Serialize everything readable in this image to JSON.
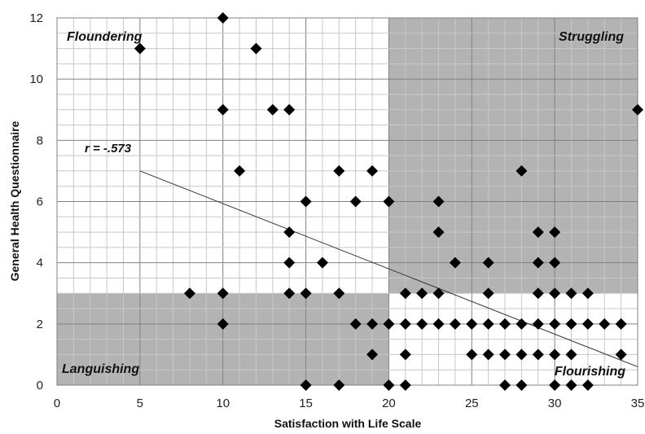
{
  "chart_data": {
    "type": "scatter",
    "xlabel": "Satisfaction with Life Scale",
    "ylabel": "General Health Questionnaire",
    "xlim": [
      0,
      35
    ],
    "ylim": [
      0,
      12
    ],
    "x_ticks": [
      "0",
      "5",
      "10",
      "15",
      "20",
      "25",
      "30",
      "35"
    ],
    "y_ticks": [
      "0",
      "2",
      "4",
      "6",
      "8",
      "10",
      "12"
    ],
    "grid": true,
    "quadrant_labels": {
      "top_left": "Floundering",
      "top_right": "Struggling",
      "bottom_left": "Languishing",
      "bottom_right": "Flourishing"
    },
    "shaded_regions": [
      {
        "x": [
          20,
          35
        ],
        "y": [
          3,
          12
        ],
        "color": "#b3b3b3"
      },
      {
        "x": [
          0,
          20
        ],
        "y": [
          0,
          3
        ],
        "color": "#b3b3b3"
      }
    ],
    "correlation_label": "r = -.573",
    "trendline": {
      "x": [
        5,
        35
      ],
      "y": [
        7,
        0.6
      ]
    },
    "marker_color": "#000000",
    "points": [
      [
        5,
        11
      ],
      [
        8,
        3
      ],
      [
        10,
        12
      ],
      [
        10,
        9
      ],
      [
        10,
        3
      ],
      [
        10,
        2
      ],
      [
        11,
        7
      ],
      [
        12,
        11
      ],
      [
        13,
        9
      ],
      [
        14,
        9
      ],
      [
        14,
        5
      ],
      [
        14,
        4
      ],
      [
        14,
        3
      ],
      [
        15,
        6
      ],
      [
        15,
        3
      ],
      [
        15,
        0
      ],
      [
        16,
        4
      ],
      [
        17,
        7
      ],
      [
        17,
        3
      ],
      [
        17,
        0
      ],
      [
        18,
        6
      ],
      [
        18,
        2
      ],
      [
        19,
        7
      ],
      [
        19,
        2
      ],
      [
        19,
        1
      ],
      [
        20,
        6
      ],
      [
        20,
        2
      ],
      [
        20,
        0
      ],
      [
        21,
        3
      ],
      [
        21,
        2
      ],
      [
        21,
        1
      ],
      [
        21,
        0
      ],
      [
        22,
        3
      ],
      [
        22,
        2
      ],
      [
        23,
        6
      ],
      [
        23,
        5
      ],
      [
        23,
        3
      ],
      [
        23,
        2
      ],
      [
        24,
        4
      ],
      [
        24,
        2
      ],
      [
        25,
        2
      ],
      [
        25,
        1
      ],
      [
        26,
        4
      ],
      [
        26,
        3
      ],
      [
        26,
        2
      ],
      [
        26,
        1
      ],
      [
        27,
        2
      ],
      [
        27,
        1
      ],
      [
        27,
        0
      ],
      [
        28,
        7
      ],
      [
        28,
        2
      ],
      [
        28,
        1
      ],
      [
        28,
        0
      ],
      [
        29,
        5
      ],
      [
        29,
        4
      ],
      [
        29,
        3
      ],
      [
        29,
        2
      ],
      [
        29,
        1
      ],
      [
        30,
        5
      ],
      [
        30,
        4
      ],
      [
        30,
        3
      ],
      [
        30,
        2
      ],
      [
        30,
        1
      ],
      [
        30,
        0
      ],
      [
        31,
        3
      ],
      [
        31,
        2
      ],
      [
        31,
        1
      ],
      [
        31,
        0
      ],
      [
        32,
        3
      ],
      [
        32,
        2
      ],
      [
        32,
        0
      ],
      [
        33,
        2
      ],
      [
        34,
        2
      ],
      [
        34,
        1
      ],
      [
        35,
        9
      ]
    ]
  }
}
